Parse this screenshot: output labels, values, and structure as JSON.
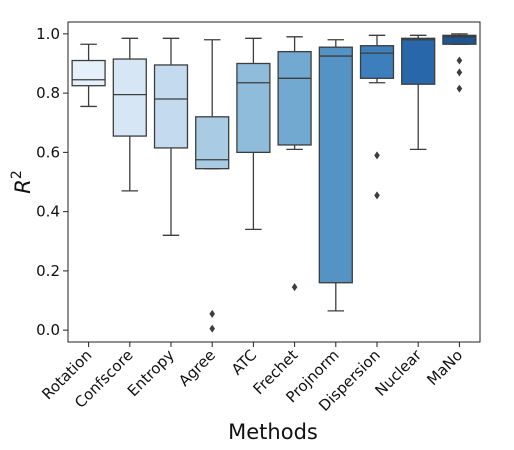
{
  "chart_data": {
    "type": "box",
    "title": "",
    "xlabel": "Methods",
    "ylabel": "R",
    "ylabel_superscript": "2",
    "ylim": [
      -0.04,
      1.04
    ],
    "yticks": [
      0.0,
      0.2,
      0.4,
      0.6,
      0.8,
      1.0
    ],
    "ytick_labels": [
      "0.0",
      "0.2",
      "0.4",
      "0.6",
      "0.8",
      "1.0"
    ],
    "grid": false,
    "legend": "none",
    "categories": [
      "Rotation",
      "Confscore",
      "Entropy",
      "Agree",
      "ATC",
      "Frechet",
      "Projnorm",
      "Dispersion",
      "Nuclear",
      "MaNo"
    ],
    "boxes": [
      {
        "category": "Rotation",
        "whisker_low": 0.755,
        "q1": 0.825,
        "median": 0.845,
        "q3": 0.91,
        "whisker_high": 0.965,
        "outliers": [],
        "color": "#e6f0fa"
      },
      {
        "category": "Confscore",
        "whisker_low": 0.47,
        "q1": 0.655,
        "median": 0.795,
        "q3": 0.915,
        "whisker_high": 0.985,
        "outliers": [],
        "color": "#d6e6f5"
      },
      {
        "category": "Entropy",
        "whisker_low": 0.32,
        "q1": 0.615,
        "median": 0.78,
        "q3": 0.895,
        "whisker_high": 0.985,
        "outliers": [],
        "color": "#c4daee"
      },
      {
        "category": "Agree",
        "whisker_low": 0.545,
        "q1": 0.545,
        "median": 0.575,
        "q3": 0.72,
        "whisker_high": 0.98,
        "outliers": [
          0.055,
          0.005
        ],
        "color": "#aacbe4"
      },
      {
        "category": "ATC",
        "whisker_low": 0.34,
        "q1": 0.6,
        "median": 0.835,
        "q3": 0.9,
        "whisker_high": 0.985,
        "outliers": [],
        "color": "#8fbcdb"
      },
      {
        "category": "Frechet",
        "whisker_low": 0.61,
        "q1": 0.625,
        "median": 0.85,
        "q3": 0.94,
        "whisker_high": 0.99,
        "outliers": [
          0.145
        ],
        "color": "#71a9d1"
      },
      {
        "category": "Projnorm",
        "whisker_low": 0.065,
        "q1": 0.16,
        "median": 0.925,
        "q3": 0.955,
        "whisker_high": 0.98,
        "outliers": [],
        "color": "#5593c4"
      },
      {
        "category": "Dispersion",
        "whisker_low": 0.835,
        "q1": 0.85,
        "median": 0.935,
        "q3": 0.96,
        "whisker_high": 0.995,
        "outliers": [
          0.59,
          0.455
        ],
        "color": "#3d7ebc"
      },
      {
        "category": "Nuclear",
        "whisker_low": 0.61,
        "q1": 0.83,
        "median": 0.98,
        "q3": 0.985,
        "whisker_high": 0.995,
        "outliers": [],
        "color": "#2867a9"
      },
      {
        "category": "MaNo",
        "whisker_low": 0.965,
        "q1": 0.965,
        "median": 0.99,
        "q3": 0.995,
        "whisker_high": 1.0,
        "outliers": [
          0.91,
          0.87,
          0.815
        ],
        "color": "#1f5591"
      }
    ]
  }
}
